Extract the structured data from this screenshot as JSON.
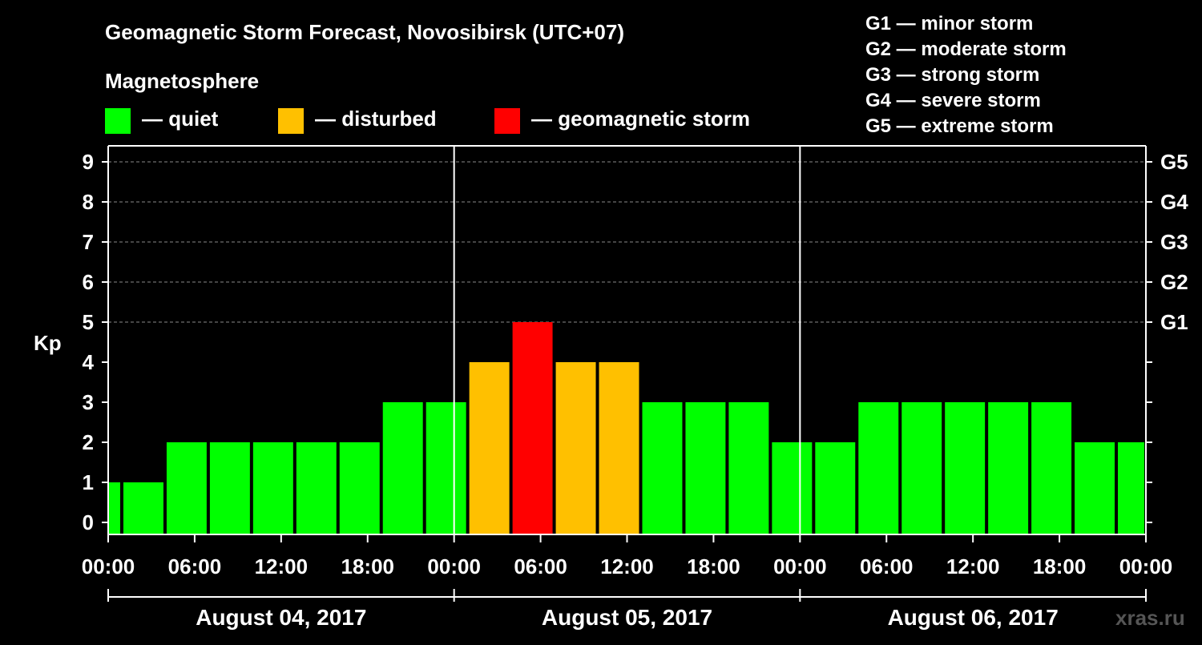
{
  "chart_data": {
    "type": "bar",
    "title": "Geomagnetic Storm Forecast, Novosibirsk (UTC+07)",
    "subtitle": "Magnetosphere",
    "ylabel": "Kp",
    "ylim": [
      0,
      9
    ],
    "yticks": [
      "0",
      "1",
      "2",
      "3",
      "4",
      "5",
      "6",
      "7",
      "8",
      "9"
    ],
    "right_axis_labels": [
      {
        "kp": 5,
        "label": "G1"
      },
      {
        "kp": 6,
        "label": "G2"
      },
      {
        "kp": 7,
        "label": "G3"
      },
      {
        "kp": 8,
        "label": "G4"
      },
      {
        "kp": 9,
        "label": "G5"
      }
    ],
    "grid": "dashed horizontal lines at Kp 5–9",
    "legend": [
      {
        "label": "— quiet",
        "color": "#00ff00"
      },
      {
        "label": "— disturbed",
        "color": "#ffc000"
      },
      {
        "label": "— geomagnetic storm",
        "color": "#ff0000"
      }
    ],
    "storm_scale": [
      "G1 — minor storm",
      "G2 — moderate storm",
      "G3 — strong storm",
      "G4 — severe storm",
      "G5 — extreme storm"
    ],
    "time_range_hours": [
      0,
      72
    ],
    "x_tick_labels": [
      "00:00",
      "06:00",
      "12:00",
      "18:00",
      "00:00",
      "06:00",
      "12:00",
      "18:00",
      "00:00",
      "06:00",
      "12:00",
      "18:00",
      "00:00"
    ],
    "day_labels": [
      "August 04, 2017",
      "August 05, 2017",
      "August 06, 2017"
    ],
    "watermark": "xras.ru",
    "colors": {
      "quiet": "#00ff00",
      "disturbed": "#ffc000",
      "storm": "#ff0000",
      "background": "#000000",
      "axes": "#ffffff"
    },
    "bars": [
      {
        "start": 0,
        "end": 1,
        "kp": 1,
        "level": "quiet"
      },
      {
        "start": 1,
        "end": 4,
        "kp": 1,
        "level": "quiet"
      },
      {
        "start": 4,
        "end": 7,
        "kp": 2,
        "level": "quiet"
      },
      {
        "start": 7,
        "end": 10,
        "kp": 2,
        "level": "quiet"
      },
      {
        "start": 10,
        "end": 13,
        "kp": 2,
        "level": "quiet"
      },
      {
        "start": 13,
        "end": 16,
        "kp": 2,
        "level": "quiet"
      },
      {
        "start": 16,
        "end": 19,
        "kp": 2,
        "level": "quiet"
      },
      {
        "start": 19,
        "end": 22,
        "kp": 3,
        "level": "quiet"
      },
      {
        "start": 22,
        "end": 25,
        "kp": 3,
        "level": "quiet"
      },
      {
        "start": 25,
        "end": 28,
        "kp": 4,
        "level": "disturbed"
      },
      {
        "start": 28,
        "end": 31,
        "kp": 5,
        "level": "storm"
      },
      {
        "start": 31,
        "end": 34,
        "kp": 4,
        "level": "disturbed"
      },
      {
        "start": 34,
        "end": 37,
        "kp": 4,
        "level": "disturbed"
      },
      {
        "start": 37,
        "end": 40,
        "kp": 3,
        "level": "quiet"
      },
      {
        "start": 40,
        "end": 43,
        "kp": 3,
        "level": "quiet"
      },
      {
        "start": 43,
        "end": 46,
        "kp": 3,
        "level": "quiet"
      },
      {
        "start": 46,
        "end": 49,
        "kp": 2,
        "level": "quiet"
      },
      {
        "start": 49,
        "end": 52,
        "kp": 2,
        "level": "quiet"
      },
      {
        "start": 52,
        "end": 55,
        "kp": 3,
        "level": "quiet"
      },
      {
        "start": 55,
        "end": 58,
        "kp": 3,
        "level": "quiet"
      },
      {
        "start": 58,
        "end": 61,
        "kp": 3,
        "level": "quiet"
      },
      {
        "start": 61,
        "end": 64,
        "kp": 3,
        "level": "quiet"
      },
      {
        "start": 64,
        "end": 67,
        "kp": 3,
        "level": "quiet"
      },
      {
        "start": 67,
        "end": 70,
        "kp": 2,
        "level": "quiet"
      },
      {
        "start": 70,
        "end": 72,
        "kp": 2,
        "level": "quiet"
      }
    ]
  }
}
